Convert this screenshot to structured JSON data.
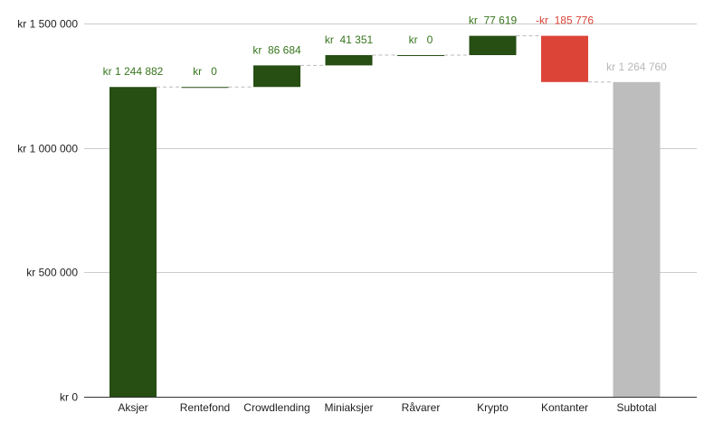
{
  "chart_data": {
    "type": "waterfall",
    "categories": [
      "Aksjer",
      "Rentefond",
      "Crowdlending",
      "Miniaksjer",
      "Råvarer",
      "Krypto",
      "Kontanter",
      "Subtotal"
    ],
    "values": [
      1244882,
      0,
      86684,
      41351,
      0,
      77619,
      -185776,
      1264760
    ],
    "kinds": [
      "increase",
      "increase",
      "increase",
      "increase",
      "increase",
      "increase",
      "decrease",
      "total"
    ],
    "data_labels": [
      "kr 1 244 882",
      "kr   0",
      "kr  86 684",
      "kr  41 351",
      "kr   0",
      "kr  77 619",
      "-kr  185 776",
      "kr 1 264 760"
    ],
    "y_ticks": [
      0,
      500000,
      1000000,
      1500000
    ],
    "y_tick_labels": [
      "kr   0",
      "kr  500 000",
      "kr 1 000 000",
      "kr 1 500 000"
    ],
    "ylim": [
      0,
      1500000
    ],
    "grid": true,
    "title": "",
    "xlabel": "",
    "ylabel": "",
    "colors": {
      "increase": "#274e13",
      "decrease": "#dc4437",
      "total": "#bdbdbd",
      "increase_label": "#38761d",
      "decrease_label": "#dc4437",
      "total_label": "#b7b7b7",
      "grid": "#cccccc",
      "connector": "#bbbbbb"
    }
  }
}
